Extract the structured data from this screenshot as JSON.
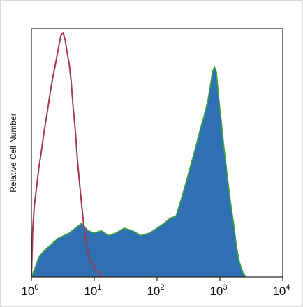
{
  "chart_data": {
    "type": "area",
    "title": "",
    "xlabel": "",
    "ylabel": "Relative Cell Number",
    "xscale": "log",
    "xlim": [
      1,
      10000
    ],
    "ylim": [
      0,
      1
    ],
    "grid": false,
    "legend": "none",
    "x_ticks": [
      {
        "base": "10",
        "exp": "0",
        "value": 1
      },
      {
        "base": "10",
        "exp": "1",
        "value": 10
      },
      {
        "base": "10",
        "exp": "2",
        "value": 100
      },
      {
        "base": "10",
        "exp": "3",
        "value": 1000
      },
      {
        "base": "10",
        "exp": "4",
        "value": 10000
      }
    ],
    "series": [
      {
        "kind": "outline",
        "color": "#a8364f",
        "x": [
          1.0,
          1.05,
          1.12,
          1.2,
          1.3,
          1.45,
          1.6,
          1.8,
          2.0,
          2.2,
          2.45,
          2.7,
          2.95,
          3.2,
          3.45,
          3.7,
          4.0,
          4.3,
          4.6,
          5.0,
          5.4,
          5.9,
          6.5,
          7.1,
          7.8,
          8.6,
          9.5,
          10.5,
          11.5,
          12.5,
          13.5
        ],
        "y": [
          0.0,
          0.2,
          0.3,
          0.36,
          0.44,
          0.52,
          0.6,
          0.68,
          0.76,
          0.82,
          0.88,
          0.94,
          0.99,
          1.0,
          0.97,
          0.92,
          0.87,
          0.8,
          0.7,
          0.6,
          0.48,
          0.37,
          0.26,
          0.17,
          0.11,
          0.07,
          0.05,
          0.03,
          0.02,
          0.01,
          0.0
        ]
      },
      {
        "kind": "filled",
        "fill": "#2f6fb3",
        "edge": "#3fa639",
        "x": [
          1.0,
          1.15,
          1.3,
          1.5,
          1.8,
          2.2,
          2.7,
          3.3,
          4.0,
          5.0,
          6.3,
          8.0,
          10,
          13,
          17,
          22,
          30,
          40,
          55,
          75,
          100,
          130,
          160,
          200,
          250,
          320,
          400,
          480,
          560,
          640,
          700,
          760,
          820,
          880,
          950,
          1050,
          1150,
          1300,
          1450,
          1650,
          1850,
          2050,
          2300,
          2600
        ],
        "y": [
          0.0,
          0.04,
          0.08,
          0.1,
          0.12,
          0.14,
          0.16,
          0.17,
          0.18,
          0.2,
          0.22,
          0.19,
          0.18,
          0.19,
          0.17,
          0.18,
          0.2,
          0.19,
          0.17,
          0.18,
          0.2,
          0.22,
          0.24,
          0.25,
          0.33,
          0.43,
          0.52,
          0.6,
          0.66,
          0.72,
          0.78,
          0.84,
          0.86,
          0.84,
          0.74,
          0.64,
          0.54,
          0.42,
          0.32,
          0.22,
          0.12,
          0.06,
          0.02,
          0.0
        ]
      }
    ]
  }
}
